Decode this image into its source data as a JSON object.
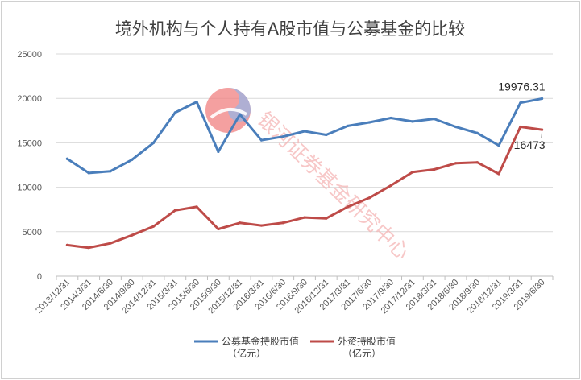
{
  "chart_data": {
    "type": "line",
    "title": "境外机构与个人持有A股市值与公募基金的比较",
    "categories": [
      "2013/12/31",
      "2014/3/31",
      "2014/6/30",
      "2014/9/30",
      "2014/12/31",
      "2015/3/31",
      "2015/6/30",
      "2015/9/30",
      "2015/12/31",
      "2016/3/31",
      "2016/6/30",
      "2016/9/30",
      "2016/12/31",
      "2017/3/31",
      "2017/6/30",
      "2017/9/30",
      "2017/12/31",
      "2018/3/31",
      "2018/6/30",
      "2018/9/30",
      "2018/12/31",
      "2019/3/31",
      "2019/6/30"
    ],
    "ylim": [
      0,
      25000
    ],
    "yticks": [
      "0",
      "5000",
      "10000",
      "15000",
      "20000",
      "25000"
    ],
    "grid": true,
    "legend_position": "bottom",
    "series": [
      {
        "name_line1": "公募基金持股市值",
        "name_line2": "（亿元）",
        "color": "#4a7ebb",
        "values": [
          13200,
          11600,
          11800,
          13100,
          15000,
          18400,
          19600,
          14000,
          18200,
          15300,
          15700,
          16300,
          15900,
          16900,
          17300,
          17800,
          17400,
          17700,
          16800,
          16100,
          14700,
          19500,
          19976.31
        ]
      },
      {
        "name_line1": "外资持股市值",
        "name_line2": "（亿元）",
        "color": "#be4b48",
        "values": [
          3500,
          3200,
          3700,
          4600,
          5600,
          7400,
          7800,
          5300,
          6000,
          5700,
          6000,
          6600,
          6500,
          7800,
          8800,
          10200,
          11700,
          12000,
          12700,
          12800,
          11500,
          16800,
          16473
        ]
      }
    ],
    "annotations": [
      {
        "series": 0,
        "text": "19976.31"
      },
      {
        "series": 1,
        "text": "16473"
      }
    ],
    "watermark": {
      "text": "银河证券基金研究中心",
      "icon": "galaxy-securities-logo-icon",
      "color": "#f4b4b4"
    }
  }
}
